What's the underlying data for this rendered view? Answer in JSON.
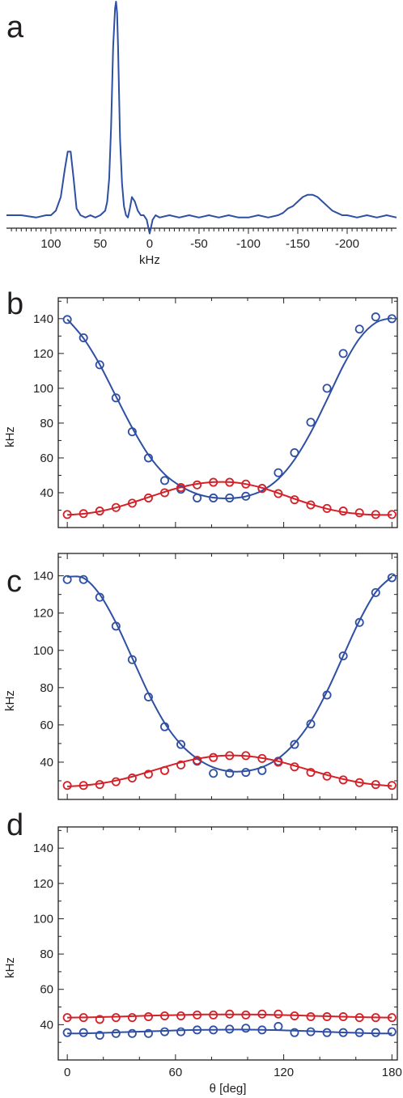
{
  "figure": {
    "panel_labels": [
      "a",
      "b",
      "c",
      "d"
    ]
  },
  "colors": {
    "blue": "#2e4fa3",
    "red": "#d42027",
    "axis": "#231f20"
  },
  "chart_data": [
    {
      "panel": "a",
      "type": "line",
      "xlabel": "kHz",
      "ylabel": "",
      "xlim": [
        145,
        -250
      ],
      "x_ticks": [
        100,
        50,
        0,
        -50,
        -100,
        -150,
        -200
      ],
      "x_tick_labels": [
        "100",
        "50",
        "0",
        "-50",
        "-100",
        "-150",
        "-200"
      ],
      "y_axis_shown": false,
      "grid": false,
      "series": [
        {
          "color": "#2e4fa3",
          "x": [
            145,
            130,
            115,
            105,
            100,
            95,
            90,
            86,
            83,
            80,
            77,
            74,
            70,
            65,
            60,
            55,
            50,
            45,
            43,
            41,
            39,
            37,
            35,
            34,
            33,
            32,
            31,
            30,
            28,
            26,
            24,
            22,
            20,
            18,
            15,
            12,
            9,
            6,
            3,
            2,
            1,
            0,
            -1,
            -3,
            -6,
            -10,
            -20,
            -30,
            -40,
            -50,
            -60,
            -70,
            -80,
            -90,
            -100,
            -110,
            -120,
            -130,
            -135,
            -140,
            -145,
            -150,
            -155,
            -160,
            -165,
            -170,
            -175,
            -180,
            -185,
            -190,
            -195,
            -200,
            -210,
            -220,
            -230,
            -240,
            -250
          ],
          "y": [
            0.06,
            0.06,
            0.05,
            0.06,
            0.06,
            0.08,
            0.14,
            0.26,
            0.34,
            0.34,
            0.22,
            0.09,
            0.06,
            0.05,
            0.06,
            0.05,
            0.06,
            0.08,
            0.12,
            0.22,
            0.45,
            0.8,
            0.97,
            1.0,
            0.95,
            0.8,
            0.6,
            0.4,
            0.2,
            0.1,
            0.06,
            0.05,
            0.09,
            0.14,
            0.12,
            0.08,
            0.06,
            0.06,
            0.04,
            0.02,
            0.0,
            -0.02,
            0.0,
            0.04,
            0.06,
            0.05,
            0.06,
            0.05,
            0.06,
            0.05,
            0.06,
            0.05,
            0.06,
            0.05,
            0.05,
            0.06,
            0.05,
            0.06,
            0.07,
            0.09,
            0.1,
            0.12,
            0.14,
            0.15,
            0.15,
            0.14,
            0.12,
            0.1,
            0.08,
            0.07,
            0.06,
            0.06,
            0.05,
            0.06,
            0.05,
            0.06,
            0.05
          ]
        }
      ]
    },
    {
      "panel": "b",
      "type": "scatter",
      "xlabel": "",
      "ylabel": "kHz",
      "xlim": [
        -5,
        183
      ],
      "ylim": [
        20,
        152
      ],
      "y_ticks": [
        40,
        60,
        80,
        100,
        120,
        140
      ],
      "y_tick_labels": [
        "40",
        "60",
        "80",
        "100",
        "120",
        "140"
      ],
      "x_ticks": [
        0,
        60,
        120,
        180
      ],
      "x_tick_labels": [],
      "grid": false,
      "series": [
        {
          "color": "#2e4fa3",
          "x": [
            0,
            9,
            18,
            27,
            36,
            45,
            54,
            63,
            72,
            81,
            90,
            99,
            108,
            117,
            126,
            135,
            144,
            153,
            162,
            171,
            180
          ],
          "points": [
            139.5,
            129.0,
            113.5,
            94.5,
            75.0,
            60.0,
            47.0,
            42.0,
            37.0,
            37.0,
            37.0,
            38.0,
            42.5,
            51.5,
            63.0,
            80.5,
            100.0,
            120.0,
            134.0,
            141.0,
            140.0
          ],
          "fit": [
            139.7,
            128.7,
            113.6,
            95.4,
            77.3,
            61.8,
            50.6,
            43.7,
            39.3,
            37.2,
            36.8,
            37.9,
            41.2,
            47.9,
            59.1,
            74.6,
            93.5,
            112.9,
            128.6,
            137.7,
            140.4
          ]
        },
        {
          "color": "#d42027",
          "x": [
            0,
            9,
            18,
            27,
            36,
            45,
            54,
            63,
            72,
            81,
            90,
            99,
            108,
            117,
            126,
            135,
            144,
            153,
            162,
            171,
            180
          ],
          "points": [
            27.5,
            28.0,
            29.5,
            31.5,
            34.0,
            37.0,
            40.0,
            43.0,
            44.5,
            46.0,
            46.0,
            45.0,
            42.5,
            39.5,
            36.0,
            33.0,
            31.0,
            29.5,
            28.5,
            27.5,
            27.5
          ],
          "fit": [
            27.3,
            27.9,
            29.3,
            31.5,
            34.3,
            37.4,
            40.5,
            43.2,
            45.1,
            46.1,
            46.1,
            45.0,
            42.8,
            39.8,
            36.5,
            33.4,
            30.8,
            28.9,
            27.8,
            27.3,
            27.3
          ]
        }
      ]
    },
    {
      "panel": "c",
      "type": "scatter",
      "xlabel": "",
      "ylabel": "kHz",
      "xlim": [
        -5,
        183
      ],
      "ylim": [
        20,
        152
      ],
      "y_ticks": [
        40,
        60,
        80,
        100,
        120,
        140
      ],
      "y_tick_labels": [
        "40",
        "60",
        "80",
        "100",
        "120",
        "140"
      ],
      "x_ticks": [
        0,
        60,
        120,
        180
      ],
      "x_tick_labels": [],
      "grid": false,
      "series": [
        {
          "color": "#2e4fa3",
          "x": [
            0,
            9,
            18,
            27,
            36,
            45,
            54,
            63,
            72,
            81,
            90,
            99,
            108,
            117,
            126,
            135,
            144,
            153,
            162,
            171,
            180
          ],
          "points": [
            138.0,
            138.0,
            128.5,
            113.0,
            95.0,
            75.0,
            59.0,
            49.5,
            40.5,
            34.0,
            34.0,
            34.5,
            35.5,
            40.5,
            49.5,
            60.5,
            76.0,
            97.0,
            115.0,
            131.0,
            139.0
          ],
          "fit": [
            139.5,
            138.8,
            130.0,
            114.8,
            95.9,
            77.0,
            61.0,
            49.5,
            41.9,
            37.2,
            35.1,
            35.2,
            37.3,
            42.0,
            50.1,
            61.8,
            78.0,
            97.0,
            115.9,
            131.2,
            139.6
          ]
        },
        {
          "color": "#d42027",
          "x": [
            0,
            9,
            18,
            27,
            36,
            45,
            54,
            63,
            72,
            81,
            90,
            99,
            108,
            117,
            126,
            135,
            144,
            153,
            162,
            171,
            180
          ],
          "points": [
            27.5,
            27.5,
            28.0,
            29.5,
            31.5,
            33.5,
            35.5,
            38.5,
            41.0,
            42.5,
            43.5,
            43.5,
            42.0,
            40.0,
            37.5,
            34.5,
            32.5,
            30.5,
            29.0,
            28.0,
            27.5
          ],
          "fit": [
            27.0,
            27.5,
            28.5,
            30.1,
            32.2,
            34.8,
            37.4,
            39.9,
            41.8,
            43.1,
            43.6,
            43.3,
            42.2,
            40.5,
            38.1,
            35.6,
            33.1,
            30.9,
            29.1,
            27.9,
            27.2
          ]
        }
      ]
    },
    {
      "panel": "d",
      "type": "scatter",
      "xlabel": "θ [deg]",
      "ylabel": "kHz",
      "xlim": [
        -5,
        183
      ],
      "ylim": [
        20,
        152
      ],
      "y_ticks": [
        40,
        60,
        80,
        100,
        120,
        140
      ],
      "y_tick_labels": [
        "40",
        "60",
        "80",
        "100",
        "120",
        "140"
      ],
      "x_ticks": [
        0,
        60,
        120,
        180
      ],
      "x_tick_labels": [
        "0",
        "60",
        "120",
        "180"
      ],
      "grid": false,
      "series": [
        {
          "color": "#2e4fa3",
          "x": [
            0,
            9,
            18,
            27,
            36,
            45,
            54,
            63,
            72,
            81,
            90,
            99,
            108,
            117,
            126,
            135,
            144,
            153,
            162,
            171,
            180
          ],
          "points": [
            35.5,
            35.5,
            34.0,
            35.0,
            35.0,
            35.0,
            36.0,
            36.0,
            37.0,
            37.0,
            37.5,
            38.0,
            37.0,
            39.0,
            35.5,
            36.0,
            35.5,
            35.5,
            35.5,
            35.5,
            36.0
          ],
          "fit": [
            35.0,
            35.1,
            35.3,
            35.6,
            35.9,
            36.2,
            36.5,
            36.8,
            37.0,
            37.1,
            37.2,
            37.2,
            37.1,
            36.9,
            36.6,
            36.3,
            35.9,
            35.6,
            35.3,
            35.1,
            35.0
          ]
        },
        {
          "color": "#d42027",
          "x": [
            0,
            9,
            18,
            27,
            36,
            45,
            54,
            63,
            72,
            81,
            90,
            99,
            108,
            117,
            126,
            135,
            144,
            153,
            162,
            171,
            180
          ],
          "points": [
            44.0,
            44.0,
            43.0,
            44.0,
            44.0,
            44.5,
            45.0,
            45.0,
            45.5,
            45.5,
            46.0,
            45.5,
            46.0,
            46.0,
            45.0,
            44.5,
            44.5,
            44.5,
            44.0,
            44.0,
            44.0
          ],
          "fit": [
            44.0,
            44.1,
            44.3,
            44.5,
            44.8,
            45.1,
            45.3,
            45.5,
            45.7,
            45.8,
            45.8,
            45.8,
            45.7,
            45.5,
            45.3,
            45.0,
            44.8,
            44.5,
            44.3,
            44.1,
            44.0
          ]
        }
      ]
    }
  ]
}
